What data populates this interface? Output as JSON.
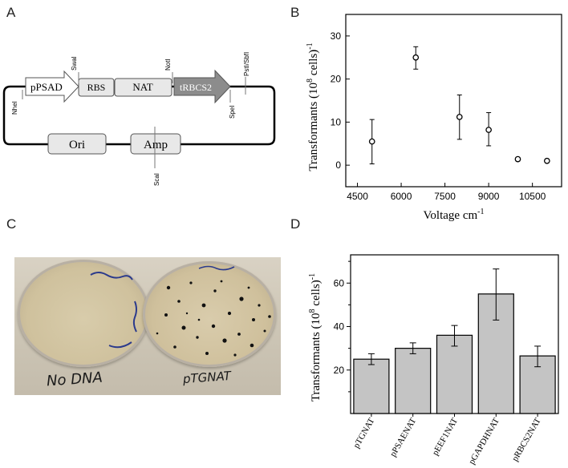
{
  "panels": {
    "a": "A",
    "b": "B",
    "c": "C",
    "d": "D"
  },
  "plasmid": {
    "boxes": [
      "pPSAD",
      "RBS",
      "NAT",
      "tRBCS2",
      "Ori",
      "Amp"
    ],
    "sites": [
      "SwaI",
      "NotI",
      "PstI/SbfI",
      "NheI",
      "SpeI",
      "ScaI"
    ]
  },
  "chart_data": [
    {
      "type": "scatter",
      "panel": "B",
      "ylabel": "Transformants (10^8 cells)^-1",
      "xlabel": "Voltage cm^-1",
      "xticks": [
        "4500",
        "6000",
        "7500",
        "9000",
        "10500"
      ],
      "yticks": [
        "0",
        "10",
        "20",
        "30"
      ],
      "xlim": [
        4100,
        11500
      ],
      "ylim": [
        -5,
        35
      ],
      "points": [
        {
          "x": 5000,
          "y": 5.5,
          "err_low": 0.3,
          "err_high": 10.6
        },
        {
          "x": 6500,
          "y": 25.0,
          "err_low": 22.3,
          "err_high": 27.5
        },
        {
          "x": 8000,
          "y": 11.2,
          "err_low": 6.0,
          "err_high": 16.3
        },
        {
          "x": 9000,
          "y": 8.2,
          "err_low": 4.5,
          "err_high": 12.2
        },
        {
          "x": 10000,
          "y": 1.4,
          "err_low": 1.0,
          "err_high": 1.8
        },
        {
          "x": 11000,
          "y": 1.0,
          "err_low": 0.8,
          "err_high": 1.2
        }
      ],
      "grid": false
    },
    {
      "type": "bar",
      "panel": "D",
      "ylabel": "Transformants (10^8 cells)^-1",
      "categories": [
        "pTGNAT",
        "pPSAENAT",
        "pEEF1NAT",
        "pGAPDHNAT",
        "pRBCS2NAT"
      ],
      "values": [
        25,
        30,
        36,
        55,
        26.5
      ],
      "err_low": [
        22.5,
        27.5,
        31,
        43,
        21.5
      ],
      "err_high": [
        27.5,
        32.5,
        40.5,
        66.5,
        31
      ],
      "yticks": [
        "20",
        "40",
        "60"
      ],
      "ylim": [
        0,
        73
      ],
      "bar_color": "#c4c4c4",
      "grid": false
    }
  ],
  "photo": {
    "left_label": "No DNA",
    "right_label": "pTGNAT"
  }
}
